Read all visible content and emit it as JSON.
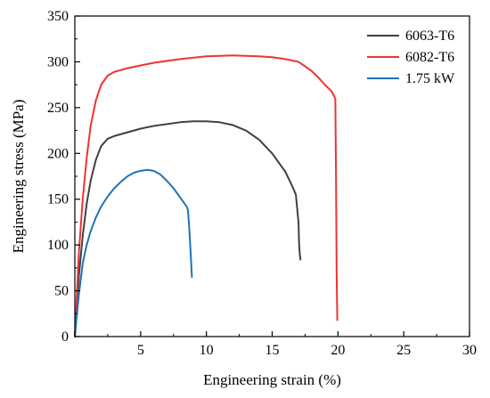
{
  "chart_data": {
    "type": "line",
    "title": "",
    "xlabel": "Engineering strain (%)",
    "ylabel": "Engineering stress (MPa)",
    "xlim": [
      0,
      30
    ],
    "ylim": [
      0,
      350
    ],
    "x_ticks": [
      0,
      5,
      10,
      15,
      20,
      25,
      30
    ],
    "x_tick_labels": [
      "",
      "5",
      "10",
      "15",
      "20",
      "25",
      "30"
    ],
    "y_ticks": [
      0,
      50,
      100,
      150,
      200,
      250,
      300,
      350
    ],
    "y_tick_labels": [
      "0",
      "50",
      "100",
      "150",
      "200",
      "250",
      "300",
      "350"
    ],
    "grid": false,
    "legend_position": "top-right",
    "series": [
      {
        "name": "6063-T6",
        "color": "#404040",
        "x": [
          0,
          0.3,
          0.6,
          0.9,
          1.2,
          1.6,
          2.0,
          2.5,
          3.0,
          4.0,
          5.0,
          6.0,
          7.0,
          8.0,
          9.0,
          10.0,
          11.0,
          12.0,
          13.0,
          14.0,
          15.0,
          16.0,
          16.5,
          16.8,
          17.0,
          17.05,
          17.1,
          17.15
        ],
        "y": [
          0,
          65,
          110,
          145,
          170,
          193,
          208,
          216,
          219,
          223,
          227,
          230,
          232,
          234,
          235,
          235,
          234,
          231,
          225,
          215,
          200,
          180,
          165,
          155,
          125,
          100,
          90,
          84
        ]
      },
      {
        "name": "6082-T6",
        "color": "#ee3333",
        "x": [
          0,
          0.3,
          0.6,
          0.9,
          1.2,
          1.6,
          2.0,
          2.5,
          3.0,
          3.5,
          4.0,
          5.0,
          6.0,
          8.0,
          10.0,
          12.0,
          14.0,
          15.0,
          16.0,
          17.0,
          18.0,
          18.5,
          19.0,
          19.5,
          19.8,
          19.85,
          19.9,
          19.95
        ],
        "y": [
          0,
          90,
          150,
          195,
          230,
          258,
          275,
          285,
          289,
          291,
          293,
          296,
          299,
          303,
          306,
          307,
          306,
          305,
          303,
          300,
          290,
          283,
          275,
          268,
          260,
          180,
          70,
          18
        ]
      },
      {
        "name": "1.75 kW",
        "color": "#1f72b8",
        "x": [
          0,
          0.3,
          0.6,
          0.9,
          1.2,
          1.6,
          2.0,
          2.5,
          3.0,
          3.5,
          4.0,
          4.5,
          5.0,
          5.5,
          6.0,
          6.5,
          7.0,
          7.5,
          8.0,
          8.5,
          8.6,
          8.7,
          8.8,
          8.9
        ],
        "y": [
          0,
          45,
          80,
          100,
          115,
          130,
          142,
          153,
          162,
          169,
          175,
          179,
          181,
          182,
          181,
          177,
          170,
          162,
          152,
          142,
          138,
          118,
          92,
          65
        ]
      }
    ]
  }
}
